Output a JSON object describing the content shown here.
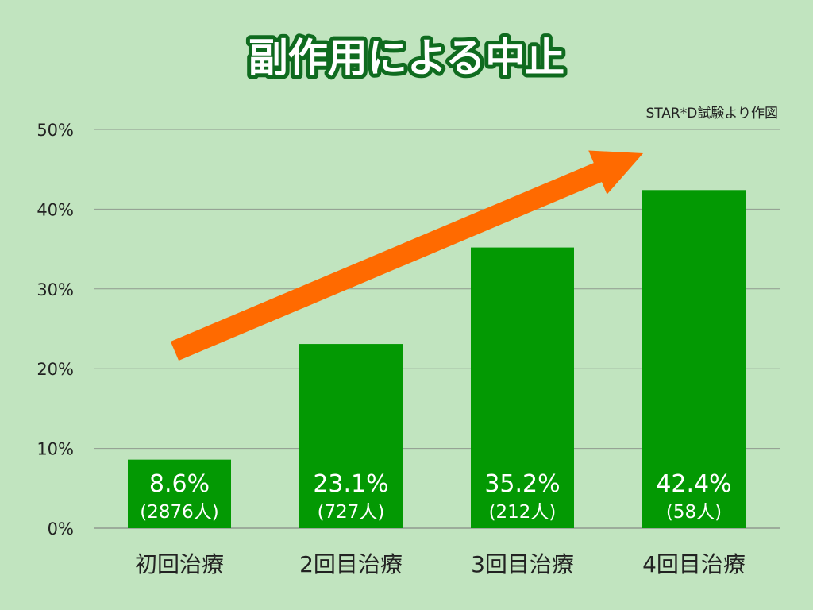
{
  "colors": {
    "background": "#c1e4bf",
    "bar": "#039903",
    "title_text": "#ffffff",
    "title_outline": "#0f6b1f",
    "arrow": "#ff6a00",
    "grid": "#8f9a8f",
    "axis_text": "#222222",
    "bar_label": "#ffffff"
  },
  "chart_data": {
    "type": "bar",
    "title": "副作用による中止",
    "source_note": "STAR*D試験より作図",
    "categories": [
      "初回治療",
      "2回目治療",
      "3回目治療",
      "4回目治療"
    ],
    "values": [
      8.6,
      23.1,
      35.2,
      42.4
    ],
    "value_labels": [
      "8.6%",
      "23.1%",
      "35.2%",
      "42.4%"
    ],
    "count_labels": [
      "(2876人)",
      "(727人)",
      "(212人)",
      "(58人)"
    ],
    "ylim": [
      0,
      50
    ],
    "yticks": [
      0,
      10,
      20,
      30,
      40,
      50
    ],
    "ytick_labels": [
      "0%",
      "10%",
      "20%",
      "30%",
      "40%",
      "50%"
    ],
    "grid": true,
    "trend_arrow": true,
    "legend": "none"
  }
}
